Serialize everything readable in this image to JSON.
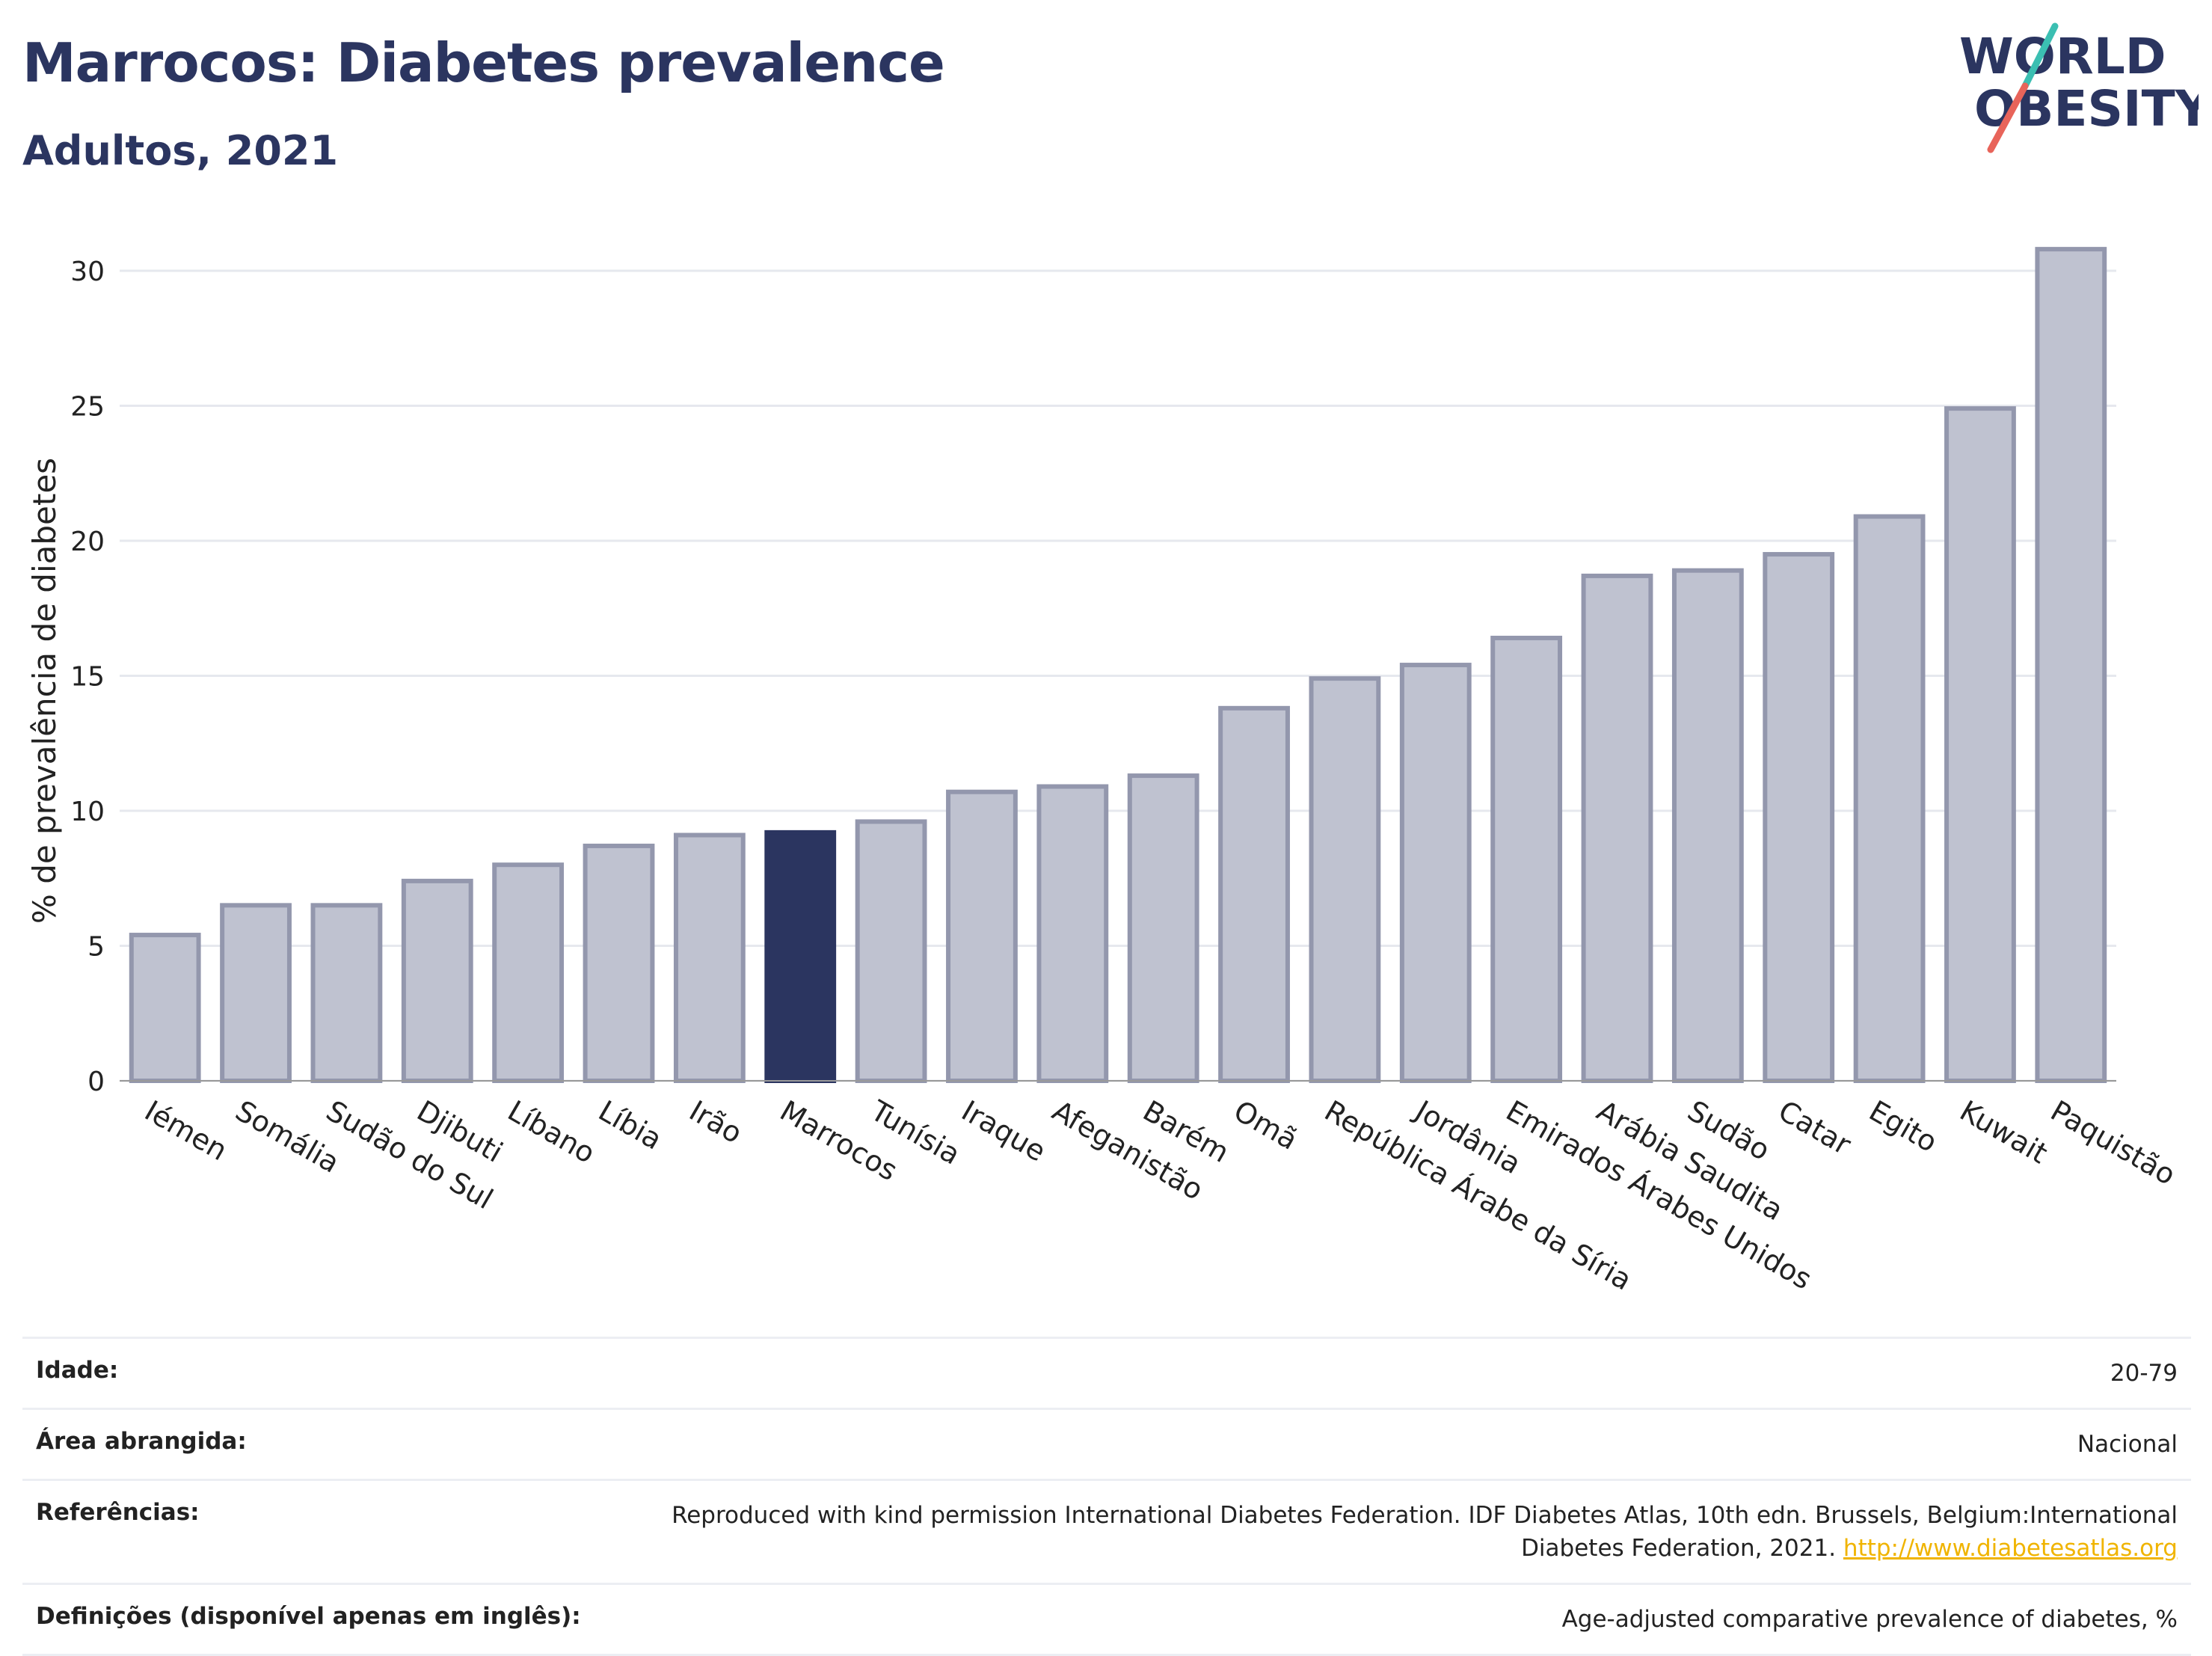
{
  "header": {
    "title": "Marrocos: Diabetes prevalence",
    "subtitle": "Adultos, 2021"
  },
  "logo": {
    "line1": "WORLD",
    "line2": "OBESITY"
  },
  "colors": {
    "highlight": "#2b3560",
    "bar": "#bfc2d0",
    "bar_border": "#9397ad",
    "grid": "#e6e8ee",
    "logo_text": "#2b3560",
    "logo_teal": "#3bbfb2",
    "logo_red": "#e8645a"
  },
  "chart_data": {
    "type": "bar",
    "ylabel": "% de prevalência de diabetes",
    "xlabel": "",
    "ylim": [
      0,
      32
    ],
    "yticks": [
      0,
      5,
      10,
      15,
      20,
      25,
      30
    ],
    "grid": true,
    "highlight": "Marrocos",
    "categories": [
      "Iémen",
      "Somália",
      "Sudão do Sul",
      "Djibuti",
      "Líbano",
      "Líbia",
      "Irão",
      "Marrocos",
      "Tunísia",
      "Iraque",
      "Afeganistão",
      "Barém",
      "Omã",
      "República Árabe da Síria",
      "Jordânia",
      "Emirados Árabes Unidos",
      "Arábia Saudita",
      "Sudão",
      "Catar",
      "Egito",
      "Kuwait",
      "Paquistão"
    ],
    "values": [
      5.4,
      6.5,
      6.5,
      7.4,
      8.0,
      8.7,
      9.1,
      9.2,
      9.6,
      10.7,
      10.9,
      11.3,
      13.8,
      14.9,
      15.4,
      16.4,
      18.7,
      18.9,
      19.5,
      20.9,
      24.9,
      30.8
    ]
  },
  "info": {
    "age_label": "Idade:",
    "age_value": "20-79",
    "area_label": "Área abrangida:",
    "area_value": "Nacional",
    "refs_label": "Referências:",
    "refs_value": "Reproduced with kind permission International Diabetes Federation.  IDF Diabetes Atlas, 10th edn. Brussels, Belgium:International Diabetes Federation, 2021.",
    "refs_link": "http://www.diabetesatlas.org",
    "defs_label": "Definições (disponível apenas em inglês):",
    "defs_value": "Age-adjusted comparative prevalence of diabetes, %"
  }
}
